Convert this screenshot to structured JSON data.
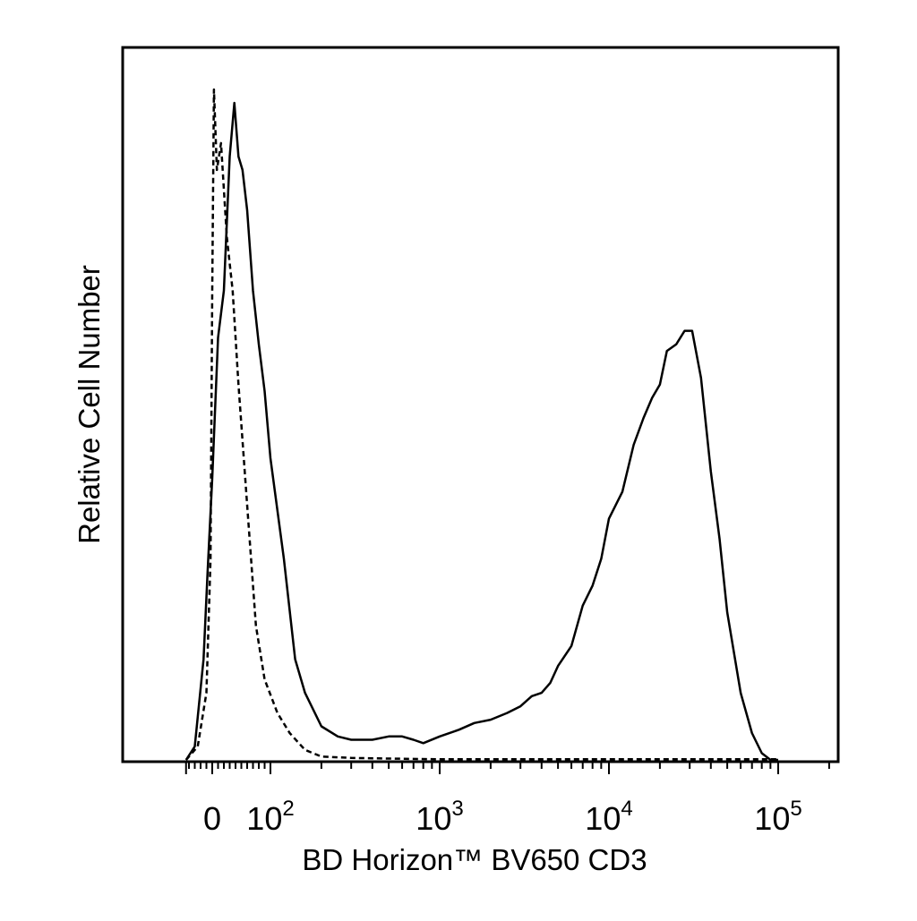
{
  "chart_data": {
    "type": "line",
    "title": "",
    "xlabel": "BD Horizon™ BV650 CD3",
    "ylabel": "Relative Cell Number",
    "x_scale": "biexponential",
    "xlim": [
      -50,
      250000
    ],
    "ylim": [
      0,
      100
    ],
    "grid": false,
    "legend": "none",
    "x_ticks": [
      {
        "value": 0,
        "base": "0",
        "exp": ""
      },
      {
        "value": 100,
        "base": "10",
        "exp": "2"
      },
      {
        "value": 1000,
        "base": "10",
        "exp": "3"
      },
      {
        "value": 10000,
        "base": "10",
        "exp": "4"
      },
      {
        "value": 100000,
        "base": "10",
        "exp": "5"
      }
    ],
    "series": [
      {
        "style": "dashed",
        "x": [
          -45,
          -25,
          -10,
          -3,
          0,
          3,
          8,
          15,
          25,
          35,
          45,
          60,
          75,
          90,
          110,
          130,
          160,
          200,
          300,
          500,
          1000,
          3000,
          10000,
          100000
        ],
        "y": [
          0,
          2,
          10,
          30,
          70,
          100,
          88,
          92,
          78,
          70,
          56,
          38,
          20,
          12,
          7,
          4,
          1.5,
          0.5,
          0.3,
          0.2,
          0.1,
          0.1,
          0.1,
          0.1
        ]
      },
      {
        "style": "solid",
        "x": [
          -45,
          -30,
          -15,
          -8,
          0,
          10,
          20,
          30,
          38,
          45,
          52,
          60,
          70,
          80,
          90,
          100,
          120,
          140,
          160,
          200,
          250,
          300,
          400,
          500,
          600,
          700,
          800,
          1000,
          1300,
          1600,
          2000,
          2500,
          3000,
          3500,
          4000,
          4500,
          5000,
          6000,
          7000,
          8000,
          9000,
          10000,
          12000,
          14000,
          16000,
          18000,
          20000,
          22000,
          25000,
          28000,
          31000,
          35000,
          40000,
          45000,
          50000,
          60000,
          70000,
          80000,
          90000,
          100000
        ],
        "y": [
          0,
          2,
          15,
          28,
          42,
          63,
          70,
          90,
          98,
          90,
          88,
          82,
          70,
          62,
          55,
          45,
          30,
          15,
          10,
          5,
          3.5,
          3,
          3,
          3.5,
          3.5,
          3,
          2.5,
          3.5,
          4.5,
          5.5,
          6,
          7,
          8,
          9.5,
          10,
          11.5,
          14,
          17,
          23,
          26,
          30,
          36,
          40,
          47,
          51,
          54,
          56,
          61,
          62,
          64,
          64,
          57,
          43,
          33,
          22,
          10,
          4,
          1,
          0,
          0
        ]
      }
    ]
  }
}
